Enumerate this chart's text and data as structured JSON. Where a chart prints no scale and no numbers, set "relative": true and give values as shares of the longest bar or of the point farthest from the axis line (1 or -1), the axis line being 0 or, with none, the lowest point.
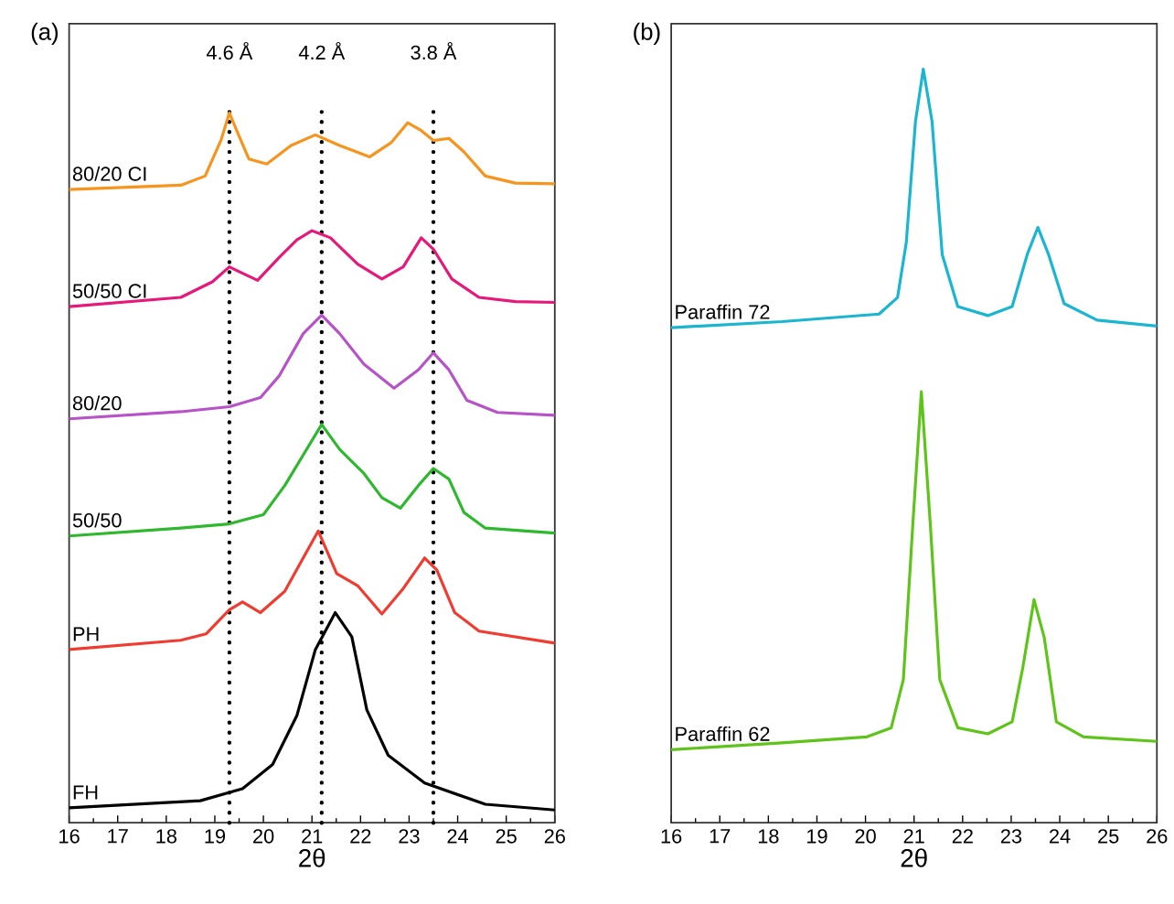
{
  "chart_data": [
    {
      "type": "line",
      "title": "(a)",
      "xlabel": "2θ",
      "relative": true,
      "xlim": [
        16,
        26
      ],
      "xticks": [
        16,
        17,
        18,
        19,
        20,
        21,
        22,
        23,
        24,
        25,
        26
      ],
      "line_style": "solid",
      "marker": "none",
      "ref_lines": [
        {
          "axis": "x",
          "value": 19.3,
          "label": "4.6 Å",
          "line_style": "dotted",
          "color": "#000000"
        },
        {
          "axis": "x",
          "value": 21.2,
          "label": "4.2 Å",
          "line_style": "dotted",
          "color": "#000000"
        },
        {
          "axis": "x",
          "value": 23.5,
          "label": "3.8 Å",
          "line_style": "dotted",
          "color": "#000000"
        }
      ],
      "series": [
        {
          "name": "80/20 CI",
          "color": "#f7941d",
          "x": [
            16,
            18.3,
            18.8,
            19.13,
            19.3,
            19.5,
            19.7,
            20.07,
            20.57,
            21.07,
            21.57,
            22.19,
            22.63,
            22.97,
            23.25,
            23.5,
            23.82,
            24.13,
            24.57,
            25.19,
            26
          ],
          "values": [
            0.892,
            0.898,
            0.911,
            0.962,
            1.0,
            0.967,
            0.935,
            0.928,
            0.954,
            0.969,
            0.954,
            0.938,
            0.958,
            0.986,
            0.975,
            0.961,
            0.964,
            0.945,
            0.911,
            0.901,
            0.9
          ]
        },
        {
          "name": "50/50 CI",
          "color": "#e6197a",
          "x": [
            16,
            18.3,
            18.95,
            19.3,
            19.57,
            19.88,
            20.32,
            20.69,
            21.0,
            21.38,
            21.94,
            22.44,
            22.88,
            23.25,
            23.5,
            23.88,
            24.44,
            25.19,
            26
          ],
          "values": [
            0.727,
            0.74,
            0.762,
            0.783,
            0.774,
            0.764,
            0.796,
            0.821,
            0.834,
            0.824,
            0.787,
            0.766,
            0.783,
            0.824,
            0.808,
            0.766,
            0.74,
            0.734,
            0.733
          ]
        },
        {
          "name": "80/20",
          "color": "#b752c8",
          "x": [
            16,
            18.3,
            19.3,
            19.94,
            20.32,
            20.82,
            21.2,
            21.57,
            22.07,
            22.69,
            23.19,
            23.5,
            23.82,
            24.19,
            24.82,
            26
          ],
          "values": [
            0.569,
            0.579,
            0.586,
            0.599,
            0.629,
            0.689,
            0.715,
            0.689,
            0.646,
            0.612,
            0.638,
            0.662,
            0.638,
            0.595,
            0.578,
            0.574
          ]
        },
        {
          "name": "50/50",
          "color": "#2db82d",
          "x": [
            16,
            18.3,
            19.3,
            20.0,
            20.44,
            20.82,
            21.2,
            21.57,
            22.07,
            22.44,
            22.82,
            23.19,
            23.5,
            23.82,
            24.13,
            24.57,
            26
          ],
          "values": [
            0.404,
            0.415,
            0.421,
            0.434,
            0.475,
            0.518,
            0.561,
            0.526,
            0.492,
            0.458,
            0.443,
            0.475,
            0.499,
            0.484,
            0.437,
            0.415,
            0.408
          ]
        },
        {
          "name": "PH",
          "color": "#f03c30",
          "x": [
            16,
            18.3,
            18.82,
            19.3,
            19.57,
            19.94,
            20.44,
            20.82,
            21.13,
            21.51,
            21.94,
            22.44,
            22.88,
            23.32,
            23.57,
            23.94,
            24.44,
            26
          ],
          "values": [
            0.244,
            0.257,
            0.266,
            0.3,
            0.311,
            0.296,
            0.326,
            0.373,
            0.411,
            0.351,
            0.334,
            0.294,
            0.33,
            0.373,
            0.356,
            0.296,
            0.27,
            0.253
          ]
        },
        {
          "name": "FH",
          "color": "#000000",
          "x": [
            16,
            18.7,
            19.57,
            20.19,
            20.69,
            21.07,
            21.48,
            21.82,
            22.13,
            22.57,
            23.32,
            24.57,
            26
          ],
          "values": [
            0.021,
            0.031,
            0.048,
            0.082,
            0.151,
            0.244,
            0.296,
            0.262,
            0.159,
            0.095,
            0.056,
            0.026,
            0.018
          ]
        }
      ]
    },
    {
      "type": "line",
      "title": "(b)",
      "xlabel": "2θ",
      "relative": true,
      "xlim": [
        16,
        26
      ],
      "xticks": [
        16,
        17,
        18,
        19,
        20,
        21,
        22,
        23,
        24,
        25,
        26
      ],
      "line_style": "solid",
      "marker": "none",
      "series": [
        {
          "name": "Paraffin 72",
          "color": "#1ab5d0",
          "x": [
            16,
            18.28,
            20.28,
            20.66,
            20.84,
            21.03,
            21.19,
            21.37,
            21.58,
            21.9,
            22.52,
            23.02,
            23.33,
            23.55,
            23.77,
            24.09,
            24.77,
            26
          ],
          "values": [
            0.657,
            0.665,
            0.675,
            0.697,
            0.77,
            0.931,
            1.0,
            0.931,
            0.754,
            0.685,
            0.673,
            0.685,
            0.754,
            0.79,
            0.754,
            0.689,
            0.667,
            0.659
          ]
        },
        {
          "name": "Paraffin 62",
          "color": "#5ec41a",
          "x": [
            16,
            18.28,
            20.03,
            20.53,
            20.78,
            20.97,
            21.15,
            21.34,
            21.53,
            21.9,
            22.52,
            23.02,
            23.24,
            23.47,
            23.68,
            23.93,
            24.49,
            26
          ],
          "values": [
            0.097,
            0.106,
            0.114,
            0.126,
            0.19,
            0.391,
            0.572,
            0.391,
            0.19,
            0.126,
            0.118,
            0.134,
            0.206,
            0.296,
            0.246,
            0.134,
            0.114,
            0.108
          ]
        }
      ]
    }
  ]
}
